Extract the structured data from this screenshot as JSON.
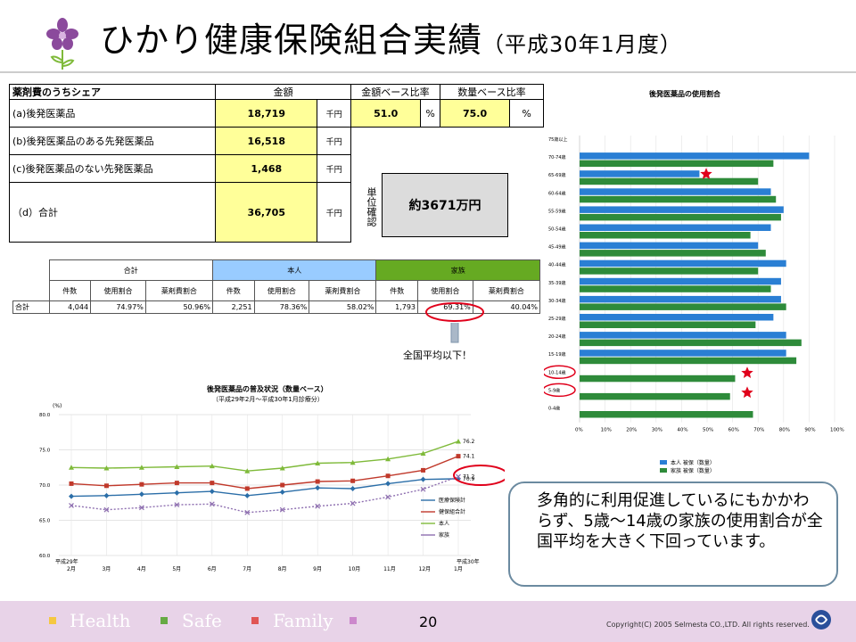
{
  "title": {
    "main": "ひかり健康保険組合実績",
    "sub": "（平成30年1月度）"
  },
  "share_table": {
    "header": {
      "label": "薬剤費のうちシェア",
      "amount": "金額",
      "amount_ratio": "金額ベース比率",
      "qty_ratio": "数量ベース比率"
    },
    "rows": [
      {
        "label": "(a)後発医薬品",
        "value": "18,719",
        "unit": "千円",
        "ratio1": "51.0",
        "pct1": "%",
        "ratio2": "75.0",
        "pct2": "%"
      },
      {
        "label": "(b)後発医薬品のある先発医薬品",
        "value": "16,518",
        "unit": "千円"
      },
      {
        "label": "(c)後発医薬品のない先発医薬品",
        "value": "1,468",
        "unit": "千円"
      },
      {
        "label": "（d）合計",
        "value": "36,705",
        "unit": "千円"
      }
    ],
    "unit_label": "単位確認",
    "total_yen": "約3671万円"
  },
  "usage_table": {
    "groups": [
      "合計",
      "本人",
      "家族"
    ],
    "columns": [
      "件数",
      "使用割合",
      "薬剤費割合",
      "件数",
      "使用割合",
      "薬剤費割合",
      "件数",
      "使用割合",
      "薬剤費割合"
    ],
    "row_label": "合計",
    "row": [
      "4,044",
      "74.97%",
      "50.96%",
      "2,251",
      "78.36%",
      "58.02%",
      "1,793",
      "69.31%",
      "40.04%"
    ]
  },
  "callout": "全国平均以下！",
  "line_chart": {
    "title": "後発医薬品の普及状況（数量ベース）",
    "subtitle": "（平成29年2月～平成30年1月診療分）",
    "y_unit": "(%)",
    "x_start_label": "平成29年",
    "x_end_label": "平成30年",
    "end_labels": [
      "76.2",
      "74.1",
      "71.2",
      "70.9"
    ]
  },
  "bar_chart": {
    "title": "後発医薬品の使用割合",
    "categories": [
      "75歳以上",
      "70-74歳",
      "65-69歳",
      "60-64歳",
      "55-59歳",
      "50-54歳",
      "45-49歳",
      "40-44歳",
      "35-39歳",
      "30-34歳",
      "25-29歳",
      "20-24歳",
      "15-19歳",
      "10-14歳",
      "5-9歳",
      "0-4歳"
    ],
    "x_ticks": [
      "0%",
      "10%",
      "20%",
      "30%",
      "40%",
      "50%",
      "60%",
      "70%",
      "80%",
      "90%",
      "100%"
    ],
    "legend": [
      "本人 被保（数量）",
      "家族 被保（数量）"
    ]
  },
  "note": "多角的に利用促進しているにもかかわらず、5歳～14歳の家族の使用割合が全国平均を大きく下回っています。",
  "footer": {
    "items": [
      "Health",
      "Safe",
      "Family"
    ],
    "page": "20",
    "copyright": "Copyright(C) 2005 Selmesta CO.,LTD.  All rights reserved."
  },
  "colors": {
    "blue_bar": "#2a7fd4",
    "green_bar": "#2e8b3a",
    "red_mark": "#e0001b",
    "line_blue": "#2b6ea8",
    "line_red": "#c0392b",
    "line_green": "#7fba3a",
    "line_purple": "#8e6fb0"
  },
  "chart_data": [
    {
      "type": "line",
      "title": "後発医薬品の普及状況（数量ベース）",
      "subtitle": "（平成29年2月～平成30年1月診療分）",
      "ylabel": "(%)",
      "ylim": [
        60,
        80
      ],
      "y_ticks": [
        "80.0",
        "75.0",
        "70.0",
        "65.0",
        "60.0"
      ],
      "categories": [
        "2月",
        "3月",
        "4月",
        "5月",
        "6月",
        "7月",
        "8月",
        "9月",
        "10月",
        "11月",
        "12月",
        "1月"
      ],
      "series": [
        {
          "name": "医療保険計",
          "color": "#2b6ea8",
          "values": [
            68.4,
            68.5,
            68.7,
            68.9,
            69.1,
            68.5,
            69.0,
            69.6,
            69.5,
            70.2,
            70.8,
            70.9
          ]
        },
        {
          "name": "健保組合計",
          "color": "#c0392b",
          "values": [
            70.2,
            69.9,
            70.1,
            70.3,
            70.3,
            69.5,
            70.0,
            70.5,
            70.6,
            71.3,
            72.1,
            74.1
          ]
        },
        {
          "name": "本人",
          "color": "#7fba3a",
          "values": [
            72.5,
            72.4,
            72.5,
            72.6,
            72.7,
            72.0,
            72.4,
            73.1,
            73.2,
            73.7,
            74.5,
            76.2
          ]
        },
        {
          "name": "家族",
          "color": "#8e6fb0",
          "values": [
            67.1,
            66.5,
            66.8,
            67.2,
            67.3,
            66.1,
            66.5,
            67.0,
            67.4,
            68.3,
            69.4,
            71.2
          ]
        }
      ]
    },
    {
      "type": "bar",
      "orientation": "horizontal",
      "title": "後発医薬品の使用割合",
      "categories": [
        "75歳以上",
        "70-74歳",
        "65-69歳",
        "60-64歳",
        "55-59歳",
        "50-54歳",
        "45-49歳",
        "40-44歳",
        "35-39歳",
        "30-34歳",
        "25-29歳",
        "20-24歳",
        "15-19歳",
        "10-14歳",
        "5-9歳",
        "0-4歳"
      ],
      "xlim": [
        0,
        100
      ],
      "series": [
        {
          "name": "本人 被保（数量）",
          "color": "#2a7fd4",
          "values": [
            null,
            90,
            47,
            75,
            80,
            75,
            70,
            81,
            79,
            79,
            76,
            81,
            81,
            null,
            null,
            null
          ]
        },
        {
          "name": "家族 被保（数量）",
          "color": "#2e8b3a",
          "values": [
            null,
            76,
            70,
            77,
            79,
            67,
            73,
            70,
            75,
            81,
            69,
            87,
            85,
            61,
            59,
            68
          ]
        }
      ]
    }
  ]
}
